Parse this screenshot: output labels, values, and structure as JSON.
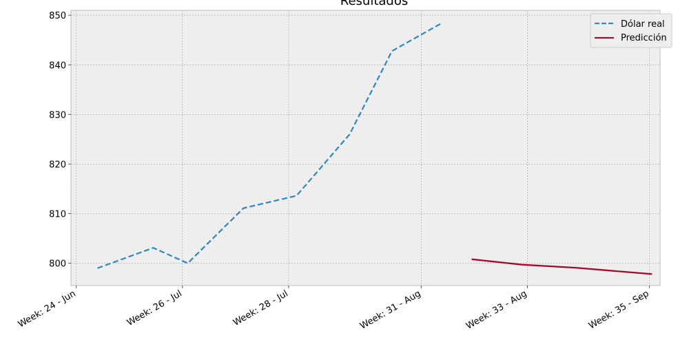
{
  "chart_data": {
    "type": "line",
    "title": "Resultados",
    "xlabel": "",
    "ylabel": "",
    "ylim": [
      795.5,
      851
    ],
    "y_ticks": [
      800,
      810,
      820,
      830,
      840,
      850
    ],
    "x_tick_labels": [
      "Week: 24 - Jun",
      "Week: 26 - Jul",
      "Week: 28 - Jul",
      "Week: 31 - Aug",
      "Week: 33 - Aug",
      "Week: 35 - Sep"
    ],
    "x_tick_weeks": [
      24,
      26,
      28,
      30.5,
      32.5,
      34.8
    ],
    "xlim": [
      23.9,
      35
    ],
    "grid": true,
    "legend_position": "top-right",
    "series": [
      {
        "name": "Dólar real",
        "color": "#348abd",
        "style": "dashed",
        "points": [
          {
            "week": 24.4,
            "value": 799.0
          },
          {
            "week": 25.45,
            "value": 803.1
          },
          {
            "week": 26.1,
            "value": 800.0
          },
          {
            "week": 27.15,
            "value": 811.1
          },
          {
            "week": 28.15,
            "value": 813.6
          },
          {
            "week": 29.15,
            "value": 826.0
          },
          {
            "week": 29.95,
            "value": 842.8
          },
          {
            "week": 30.9,
            "value": 848.5
          }
        ]
      },
      {
        "name": "Predicción",
        "color": "#a60628",
        "style": "solid",
        "points": [
          {
            "week": 31.45,
            "value": 800.8
          },
          {
            "week": 32.4,
            "value": 799.7
          },
          {
            "week": 33.4,
            "value": 799.1
          },
          {
            "week": 34.85,
            "value": 797.8
          }
        ]
      }
    ]
  }
}
